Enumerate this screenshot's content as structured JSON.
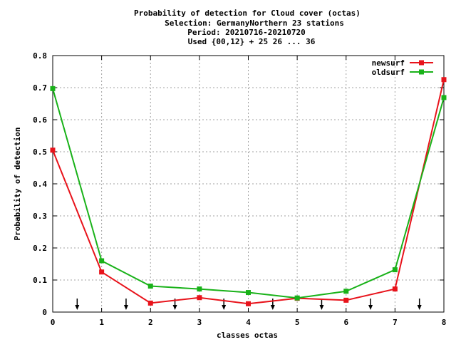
{
  "chart_data": {
    "type": "line",
    "title_lines": [
      "Probability of detection  for Cloud cover (octas)",
      "Selection: GermanyNorthern     23 stations",
      "Period: 20210716-20210720",
      "Used {00,12} + 25 26 ... 36"
    ],
    "xlabel": "classes octas",
    "ylabel": "Probability of detection",
    "x": [
      0,
      1,
      2,
      3,
      4,
      5,
      6,
      7,
      8
    ],
    "xlim": [
      0,
      8
    ],
    "ylim": [
      0,
      0.8
    ],
    "x_ticks": [
      "0",
      "1",
      "2",
      "3",
      "4",
      "5",
      "6",
      "7",
      "8"
    ],
    "y_ticks": [
      "0",
      "0.1",
      "0.2",
      "0.3",
      "0.4",
      "0.5",
      "0.6",
      "0.7",
      "0.8"
    ],
    "grid": true,
    "legend_position": "top-right",
    "series": [
      {
        "name": "newsurf",
        "color": "#e8131b",
        "values": [
          0.505,
          0.125,
          0.028,
          0.045,
          0.026,
          0.043,
          0.037,
          0.072,
          0.725
        ]
      },
      {
        "name": "oldsurf",
        "color": "#19b219",
        "values": [
          0.697,
          0.16,
          0.081,
          0.072,
          0.061,
          0.044,
          0.065,
          0.132,
          0.669
        ]
      }
    ],
    "arrow_markers_x": [
      0.5,
      1.5,
      2.5,
      3.5,
      4.5,
      5.5,
      6.5,
      7.5
    ]
  }
}
